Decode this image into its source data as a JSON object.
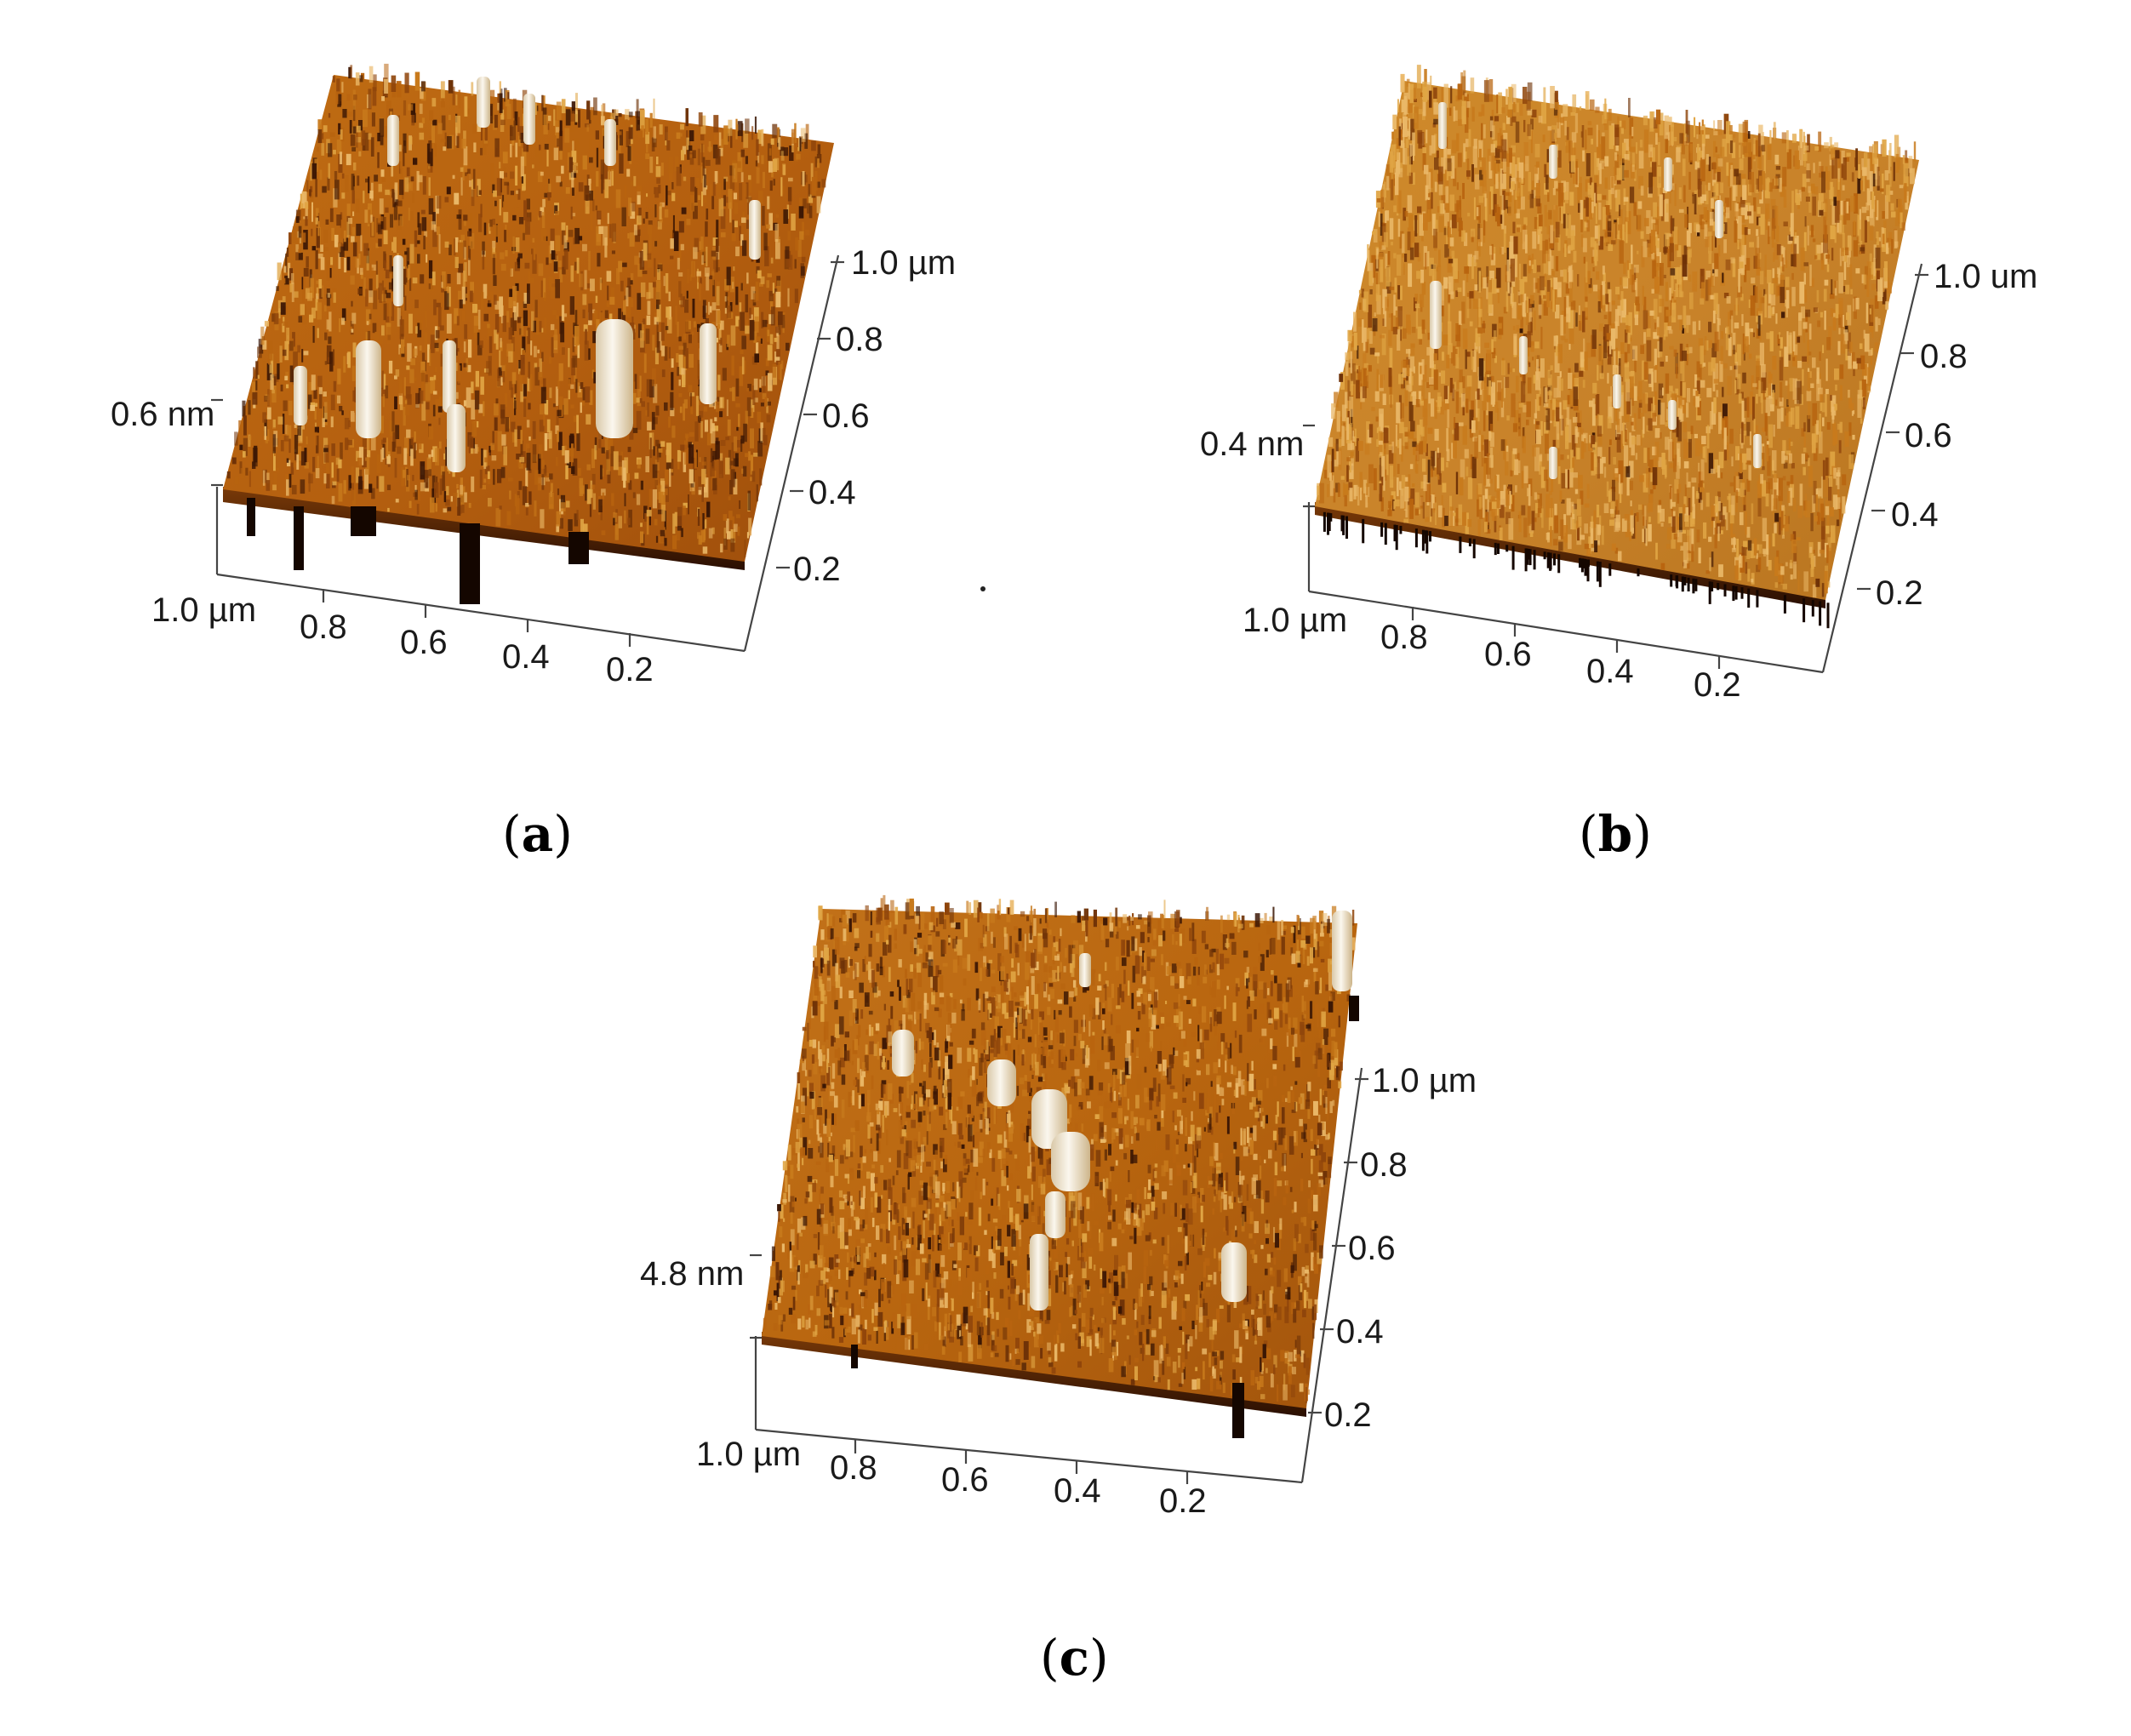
{
  "figure": {
    "panels": [
      {
        "id": "a",
        "caption_letter": "a",
        "z_label": "0.6 nm",
        "x_axis": {
          "labels": [
            "1.0 µm",
            "0.8",
            "0.6",
            "0.4",
            "0.2"
          ]
        },
        "y_axis": {
          "labels": [
            "1.0 µm",
            "0.8",
            "0.6",
            "0.4",
            "0.2"
          ]
        },
        "surface": {
          "max_height_nm": 0.6,
          "features": "scattered tall bright pillars and several deep dark pits"
        }
      },
      {
        "id": "b",
        "caption_letter": "b",
        "z_label": "0.4 nm",
        "x_axis": {
          "labels": [
            "1.0 µm",
            "0.8",
            "0.6",
            "0.4",
            "0.2"
          ]
        },
        "y_axis": {
          "labels": [
            "1.0 um",
            "0.8",
            "0.6",
            "0.4",
            "0.2"
          ]
        },
        "surface": {
          "max_height_nm": 0.4,
          "features": "dense fine uniform peaks"
        }
      },
      {
        "id": "c",
        "caption_letter": "c",
        "z_label": "4.8 nm",
        "x_axis": {
          "labels": [
            "1.0 µm",
            "0.8",
            "0.6",
            "0.4",
            "0.2"
          ]
        },
        "y_axis": {
          "labels": [
            "1.0 µm",
            "0.8",
            "0.6",
            "0.4",
            "0.2"
          ]
        },
        "surface": {
          "max_height_nm": 4.8,
          "features": "smoother surface with a bright central cluster and one tall edge peak"
        }
      }
    ],
    "colors": {
      "surface_dark": "#3a1604",
      "surface_mid": "#b8640f",
      "surface_light": "#e0a544",
      "highlight": "#f6efe2",
      "axis": "#444444",
      "text": "#1a1a1a"
    }
  }
}
